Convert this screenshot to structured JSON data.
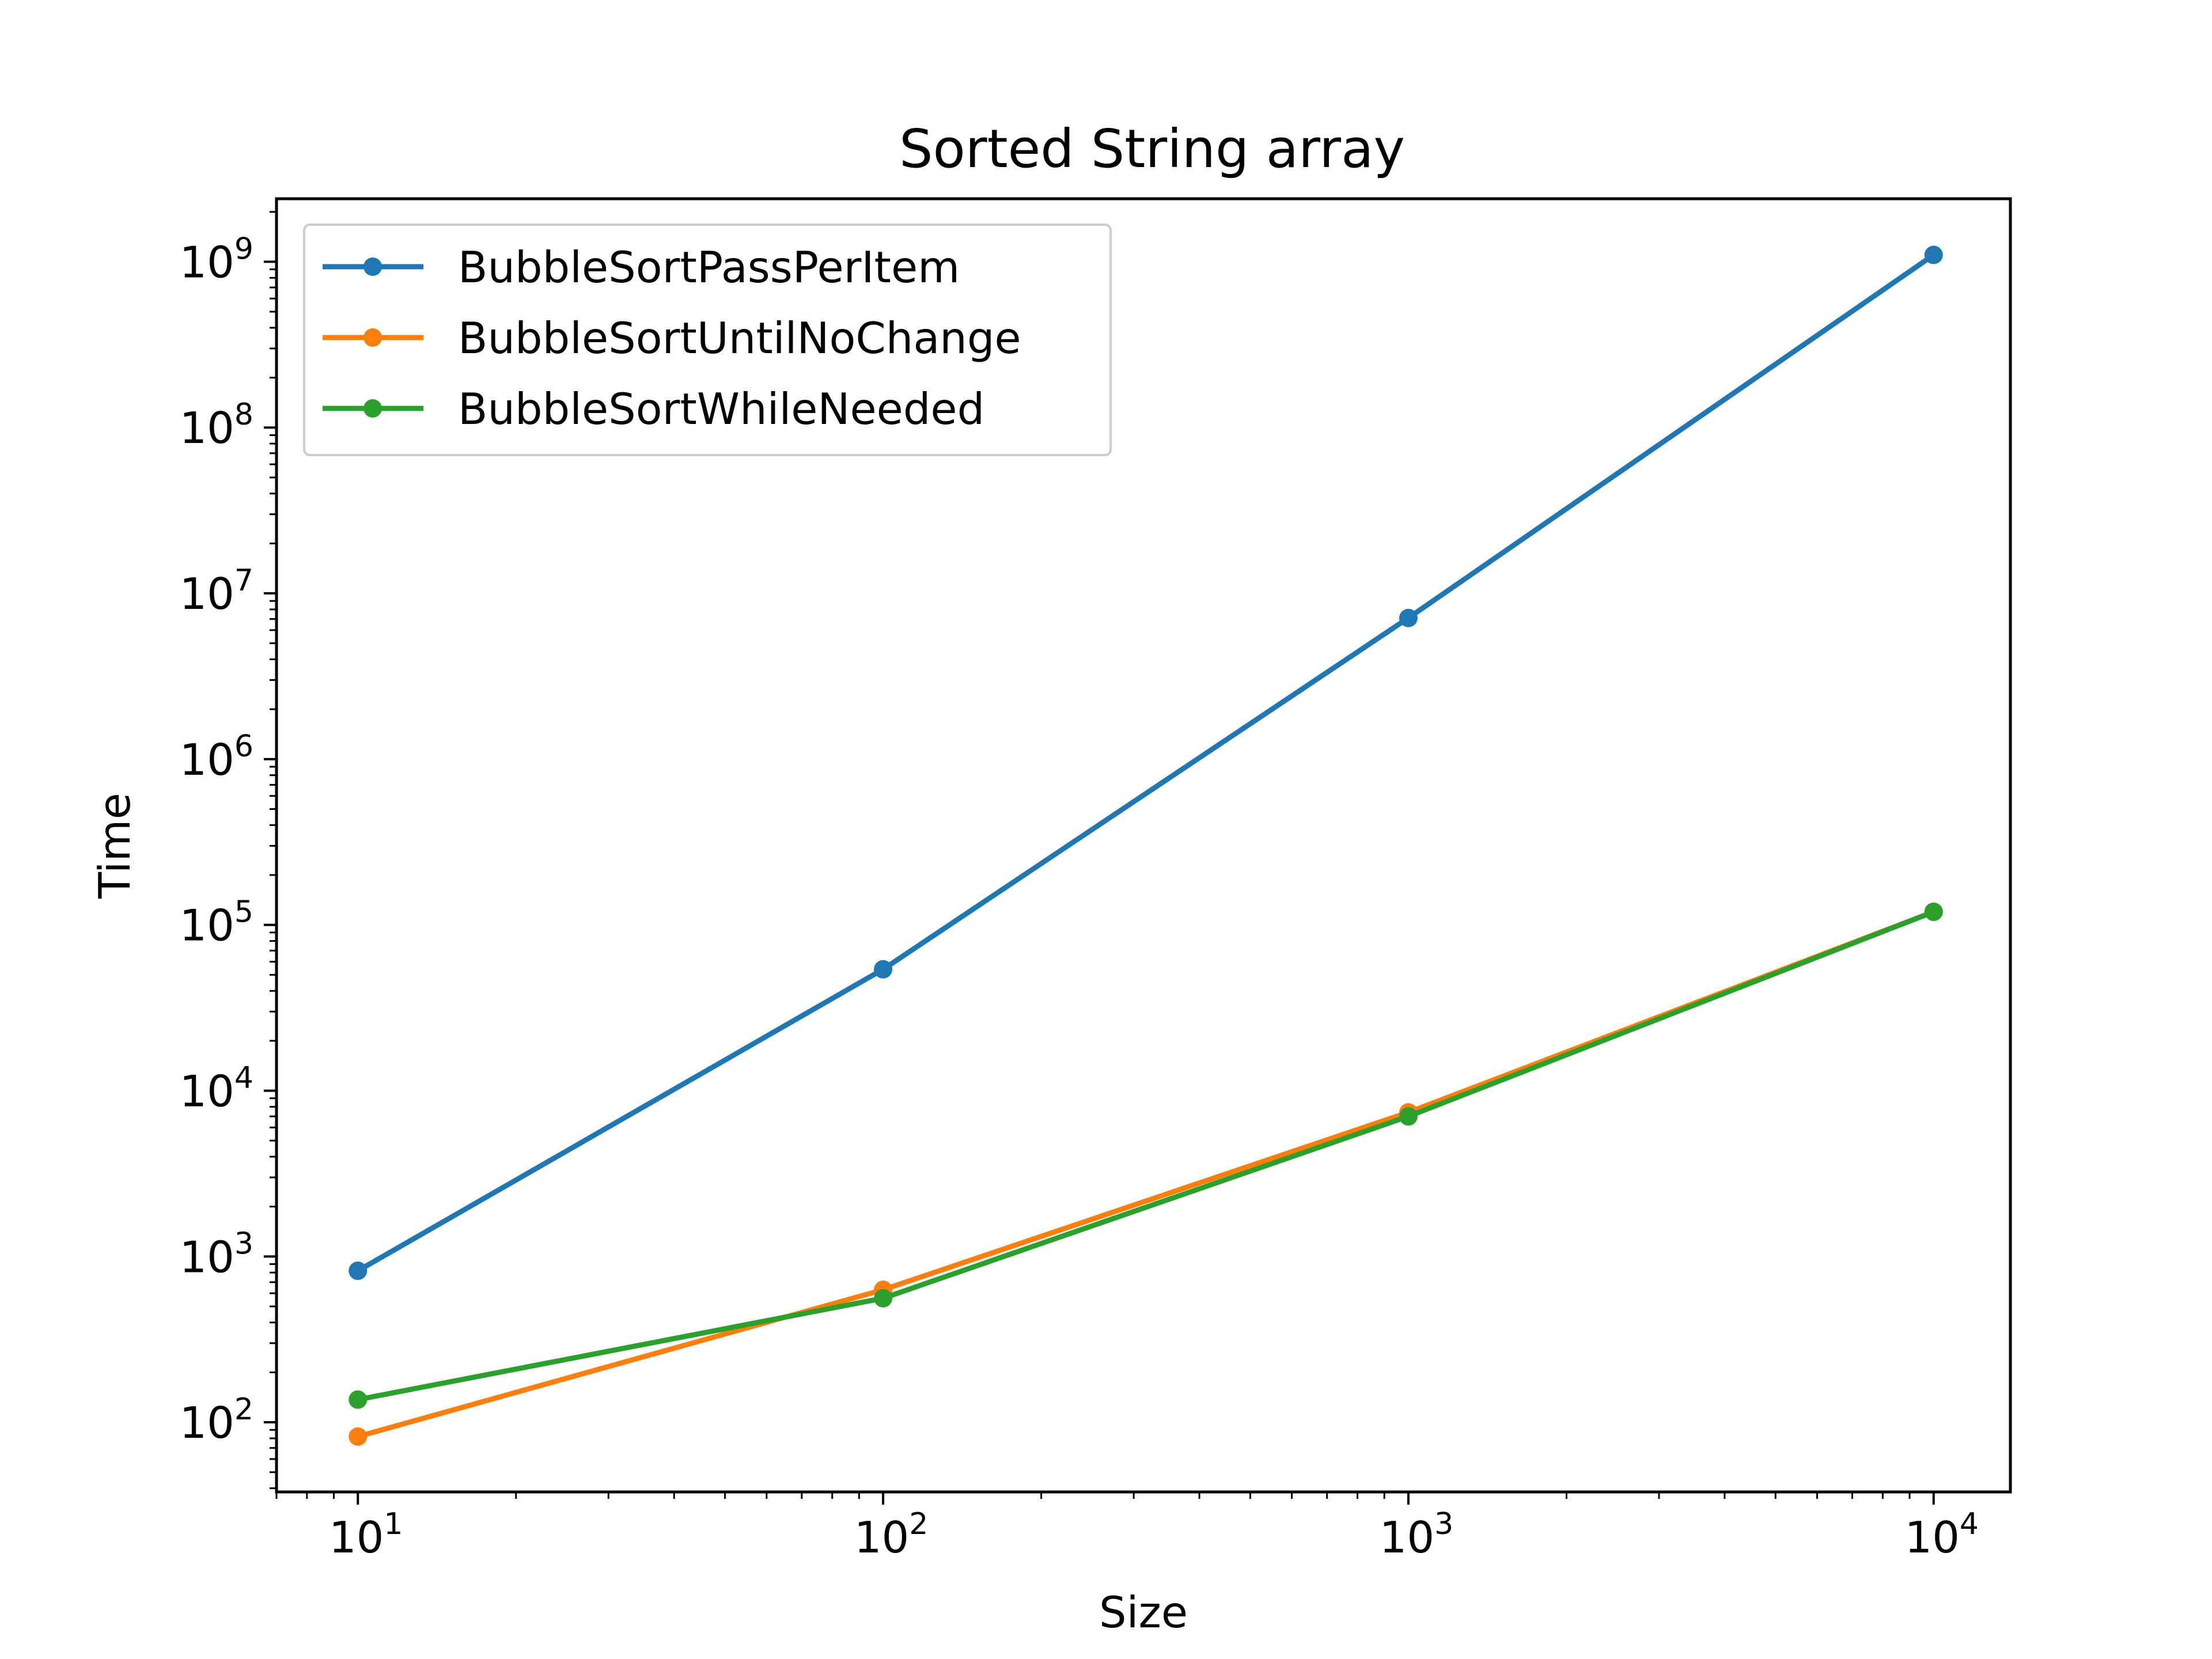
{
  "chart_data": {
    "type": "line",
    "title": "Sorted String array",
    "xlabel": "Size",
    "ylabel": "Time",
    "xscale": "log",
    "yscale": "log",
    "xlim": [
      7,
      14000
    ],
    "ylim": [
      38,
      2400000000
    ],
    "x": [
      10,
      100,
      1000,
      10000
    ],
    "x_ticks": [
      {
        "value": 10,
        "base": "10",
        "exp": "1"
      },
      {
        "value": 100,
        "base": "10",
        "exp": "2"
      },
      {
        "value": 1000,
        "base": "10",
        "exp": "3"
      },
      {
        "value": 10000,
        "base": "10",
        "exp": "4"
      }
    ],
    "y_ticks": [
      {
        "value": 100,
        "base": "10",
        "exp": "2"
      },
      {
        "value": 1000,
        "base": "10",
        "exp": "3"
      },
      {
        "value": 10000,
        "base": "10",
        "exp": "4"
      },
      {
        "value": 100000,
        "base": "10",
        "exp": "5"
      },
      {
        "value": 1000000,
        "base": "10",
        "exp": "6"
      },
      {
        "value": 10000000,
        "base": "10",
        "exp": "7"
      },
      {
        "value": 100000000,
        "base": "10",
        "exp": "8"
      },
      {
        "value": 1000000000,
        "base": "10",
        "exp": "9"
      }
    ],
    "grid": false,
    "legend_position": "top-left",
    "series": [
      {
        "name": "BubbleSortPassPerItem",
        "color": "#1f77b4",
        "values": [
          820,
          54000,
          7100000,
          1100000000
        ]
      },
      {
        "name": "BubbleSortUntilNoChange",
        "color": "#ff7f0e",
        "values": [
          82,
          630,
          7400,
          120000
        ]
      },
      {
        "name": "BubbleSortWhileNeeded",
        "color": "#2ca02c",
        "values": [
          137,
          560,
          7000,
          120000
        ]
      }
    ]
  }
}
